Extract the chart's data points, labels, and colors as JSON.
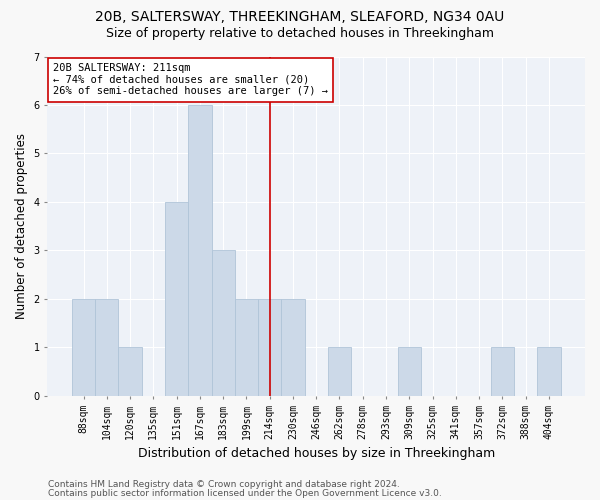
{
  "title": "20B, SALTERSWAY, THREEKINGHAM, SLEAFORD, NG34 0AU",
  "subtitle": "Size of property relative to detached houses in Threekingham",
  "xlabel": "Distribution of detached houses by size in Threekingham",
  "ylabel": "Number of detached properties",
  "categories": [
    "88sqm",
    "104sqm",
    "120sqm",
    "135sqm",
    "151sqm",
    "167sqm",
    "183sqm",
    "199sqm",
    "214sqm",
    "230sqm",
    "246sqm",
    "262sqm",
    "278sqm",
    "293sqm",
    "309sqm",
    "325sqm",
    "341sqm",
    "357sqm",
    "372sqm",
    "388sqm",
    "404sqm"
  ],
  "values": [
    2,
    2,
    1,
    0,
    4,
    6,
    3,
    2,
    2,
    2,
    0,
    1,
    0,
    0,
    1,
    0,
    0,
    0,
    1,
    0,
    1
  ],
  "bar_color": "#ccd9e8",
  "bar_edgecolor": "#b0c4d8",
  "vline_index": 8,
  "vline_color": "#cc0000",
  "annotation_text": "20B SALTERSWAY: 211sqm\n← 74% of detached houses are smaller (20)\n26% of semi-detached houses are larger (7) →",
  "annotation_box_facecolor": "#ffffff",
  "annotation_box_edgecolor": "#cc0000",
  "ylim_max": 7,
  "yticks": [
    0,
    1,
    2,
    3,
    4,
    5,
    6,
    7
  ],
  "plot_bg_color": "#eef2f8",
  "grid_color": "#ffffff",
  "fig_bg_color": "#f8f8f8",
  "title_fontsize": 10,
  "subtitle_fontsize": 9,
  "xlabel_fontsize": 9,
  "ylabel_fontsize": 8.5,
  "tick_fontsize": 7,
  "annotation_fontsize": 7.5,
  "footer_fontsize": 6.5,
  "footer_line1": "Contains HM Land Registry data © Crown copyright and database right 2024.",
  "footer_line2": "Contains public sector information licensed under the Open Government Licence v3.0."
}
